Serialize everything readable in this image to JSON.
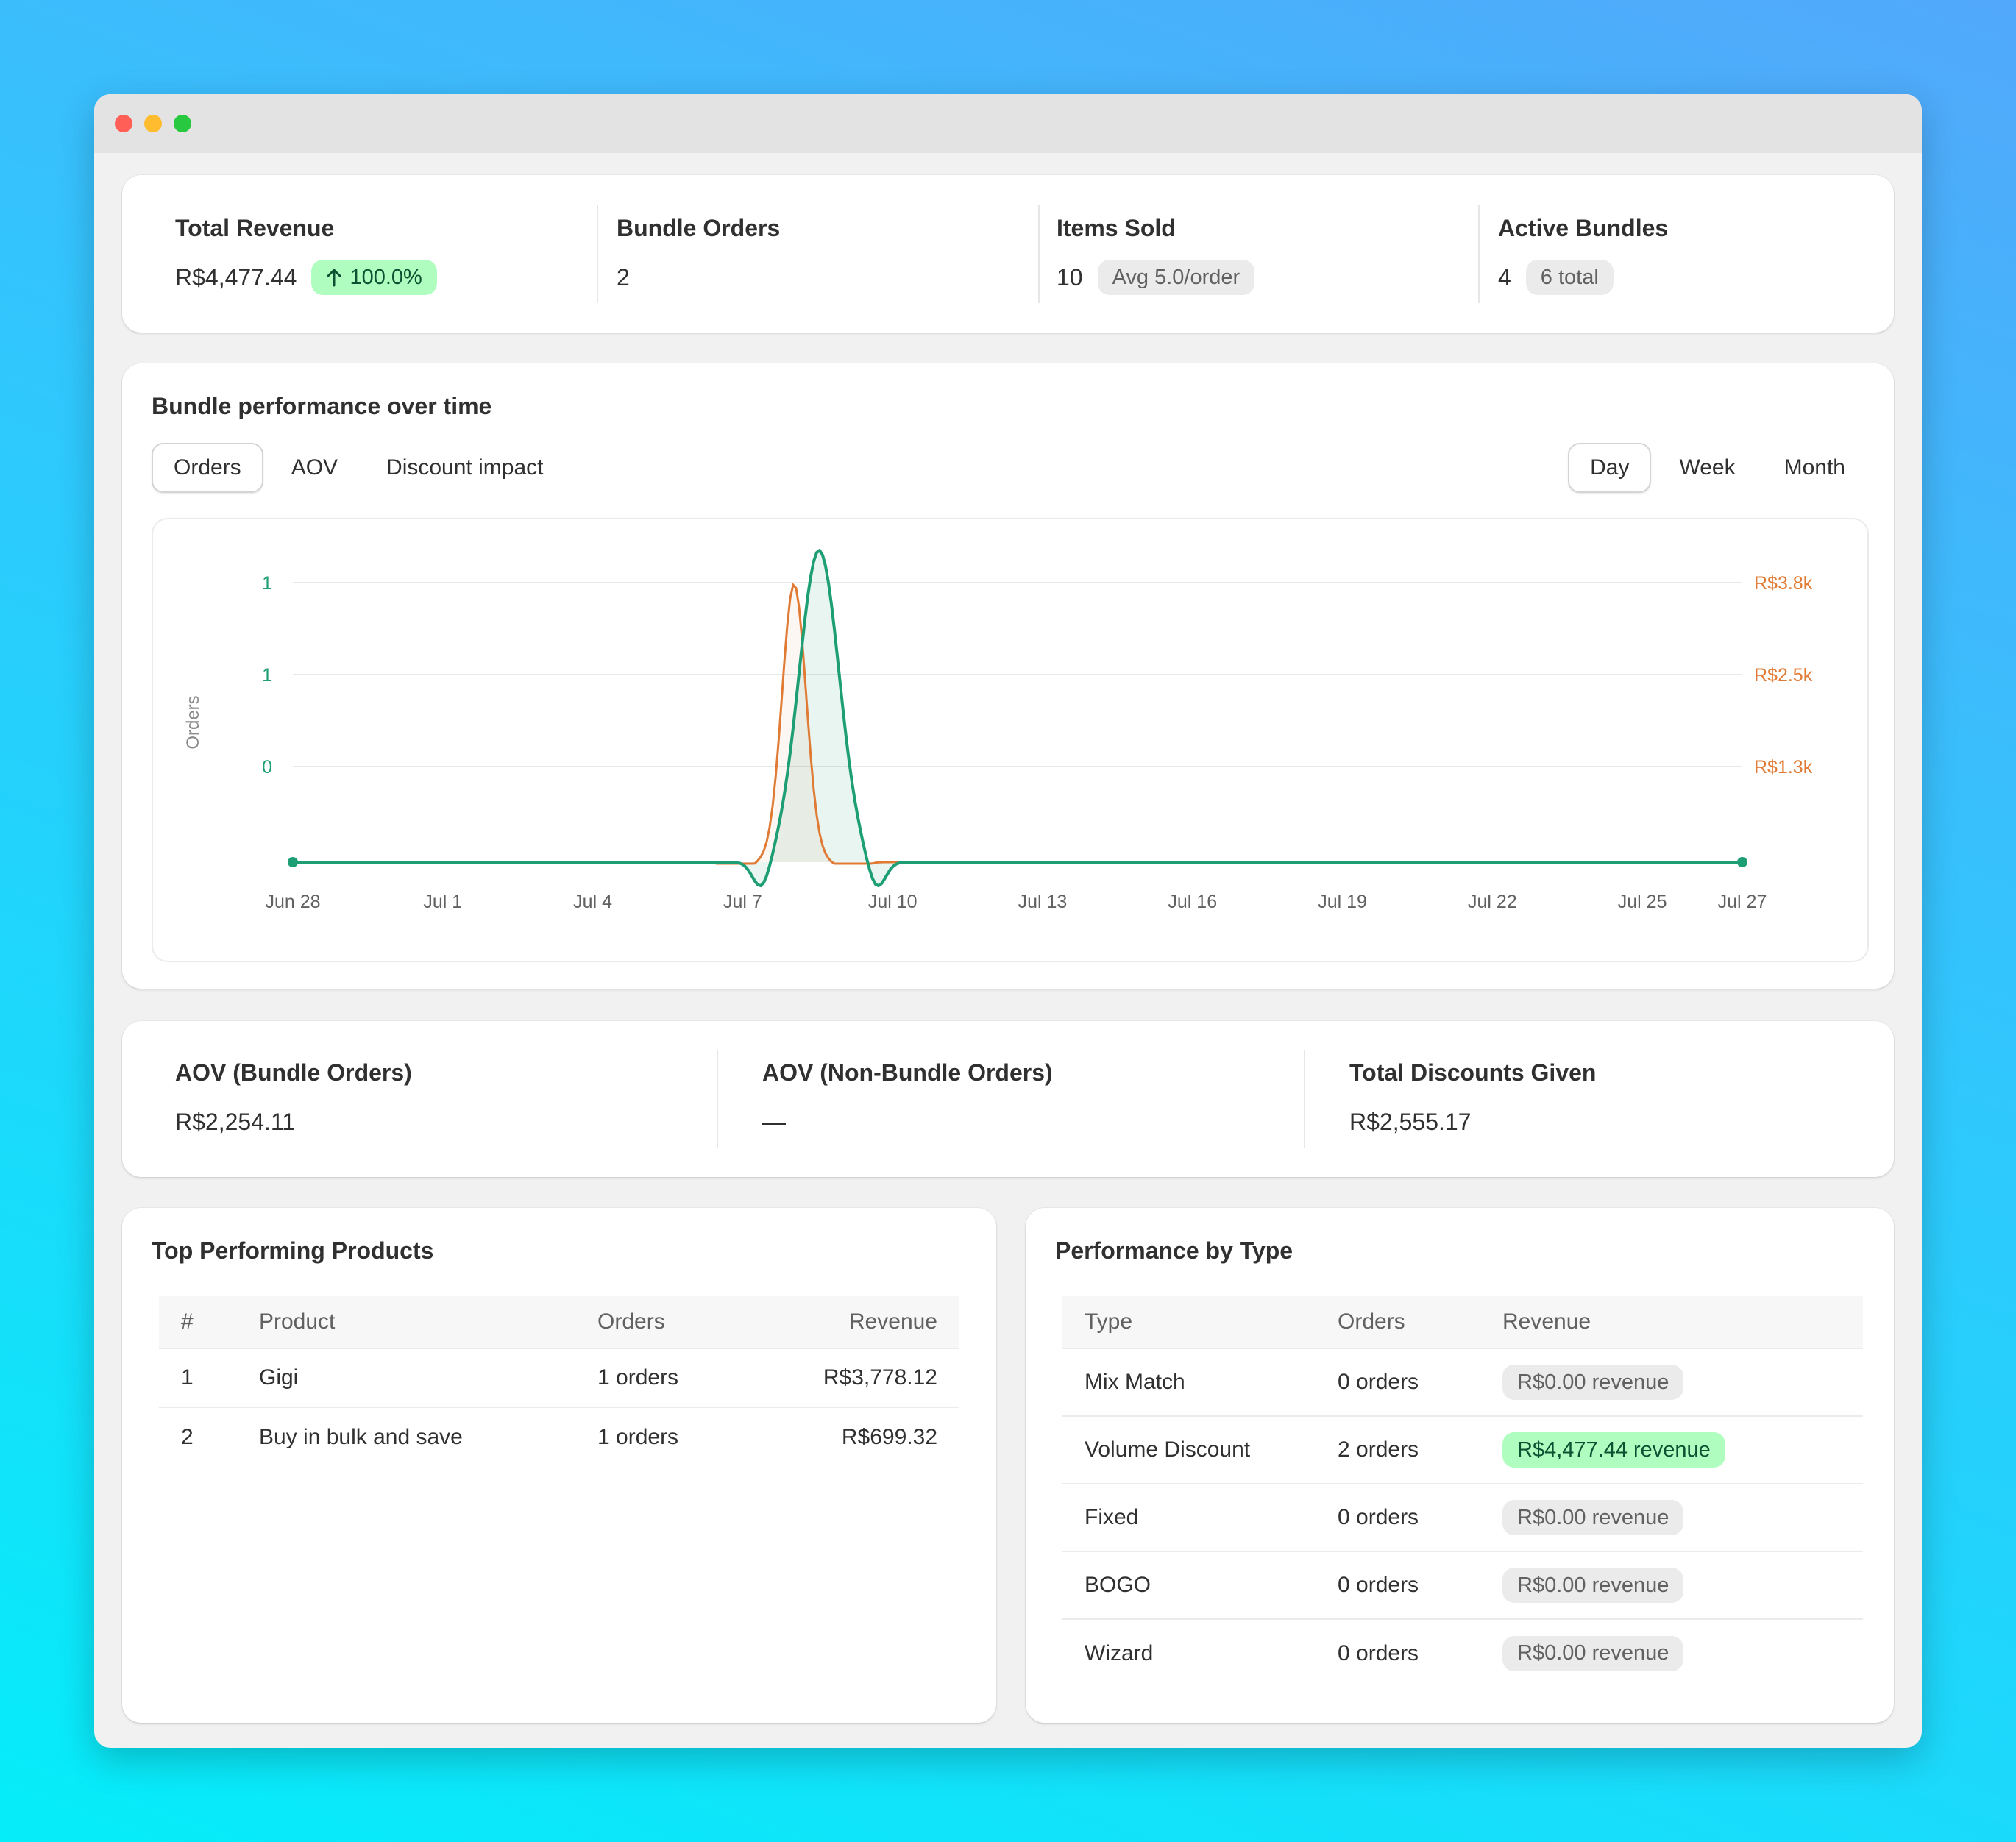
{
  "metrics": [
    {
      "label": "Total Revenue",
      "value": "R$4,477.44",
      "badge": "100.0%",
      "badge_icon": "arrow-up-icon",
      "badge_tone": "success"
    },
    {
      "label": "Bundle Orders",
      "value": "2"
    },
    {
      "label": "Items Sold",
      "value": "10",
      "badge": "Avg 5.0/order"
    },
    {
      "label": "Active Bundles",
      "value": "4",
      "badge": "6 total"
    }
  ],
  "performance": {
    "title": "Bundle performance over time",
    "metric_tabs": [
      "Orders",
      "AOV",
      "Discount impact"
    ],
    "metric_selected": "Orders",
    "period_tabs": [
      "Day",
      "Week",
      "Month"
    ],
    "period_selected": "Day"
  },
  "chart_data": {
    "type": "line",
    "ylabel": "Orders",
    "x": [
      "Jun 28",
      "Jun 29",
      "Jun 30",
      "Jul 1",
      "Jul 2",
      "Jul 3",
      "Jul 4",
      "Jul 5",
      "Jul 6",
      "Jul 7",
      "Jul 8",
      "Jul 9",
      "Jul 10",
      "Jul 11",
      "Jul 12",
      "Jul 13",
      "Jul 14",
      "Jul 15",
      "Jul 16",
      "Jul 17",
      "Jul 18",
      "Jul 19",
      "Jul 20",
      "Jul 21",
      "Jul 22",
      "Jul 23",
      "Jul 24",
      "Jul 25",
      "Jul 26",
      "Jul 27"
    ],
    "x_tick_labels": [
      "Jun 28",
      "Jul 1",
      "Jul 4",
      "Jul 7",
      "Jul 10",
      "Jul 13",
      "Jul 16",
      "Jul 19",
      "Jul 22",
      "Jul 25",
      "Jul 27"
    ],
    "y_left_tick_labels": [
      "1",
      "1",
      "0"
    ],
    "y_right_tick_labels": [
      "R$3.8k",
      "R$2.5k",
      "R$1.3k"
    ],
    "series": [
      {
        "axis": "left",
        "color": "#1d9e74",
        "values": [
          0,
          0,
          0,
          0,
          0,
          0,
          0,
          0,
          0,
          0,
          0,
          2,
          0,
          0,
          0,
          0,
          0,
          0,
          0,
          0,
          0,
          0,
          0,
          0,
          0,
          0,
          0,
          0,
          0,
          0
        ]
      },
      {
        "axis": "right",
        "color": "#e07b35",
        "values": [
          0,
          0,
          0,
          0,
          0,
          0,
          0,
          0,
          0,
          0,
          0,
          3778.12,
          0,
          0,
          0,
          0,
          0,
          0,
          0,
          0,
          0,
          0,
          0,
          0,
          0,
          0,
          0,
          0,
          0,
          0
        ]
      }
    ]
  },
  "aov_metrics": [
    {
      "label": "AOV (Bundle Orders)",
      "value": "R$2,254.11"
    },
    {
      "label": "AOV (Non-Bundle Orders)",
      "value": "—"
    },
    {
      "label": "Total Discounts Given",
      "value": "R$2,555.17"
    }
  ],
  "top_products": {
    "title": "Top Performing Products",
    "columns": [
      "#",
      "Product",
      "Orders",
      "Revenue"
    ],
    "rows": [
      {
        "rank": "1",
        "product": "Gigi",
        "orders": "1 orders",
        "revenue": "R$3,778.12"
      },
      {
        "rank": "2",
        "product": "Buy in bulk and save",
        "orders": "1 orders",
        "revenue": "R$699.32"
      }
    ]
  },
  "by_type": {
    "title": "Performance by Type",
    "columns": [
      "Type",
      "Orders",
      "Revenue"
    ],
    "rows": [
      {
        "type": "Mix Match",
        "orders": "0 orders",
        "revenue": "R$0.00 revenue",
        "tone": "neutral"
      },
      {
        "type": "Volume Discount",
        "orders": "2 orders",
        "revenue": "R$4,477.44 revenue",
        "tone": "success"
      },
      {
        "type": "Fixed",
        "orders": "0 orders",
        "revenue": "R$0.00 revenue",
        "tone": "neutral"
      },
      {
        "type": "BOGO",
        "orders": "0 orders",
        "revenue": "R$0.00 revenue",
        "tone": "neutral"
      },
      {
        "type": "Wizard",
        "orders": "0 orders",
        "revenue": "R$0.00 revenue",
        "tone": "neutral"
      }
    ]
  }
}
